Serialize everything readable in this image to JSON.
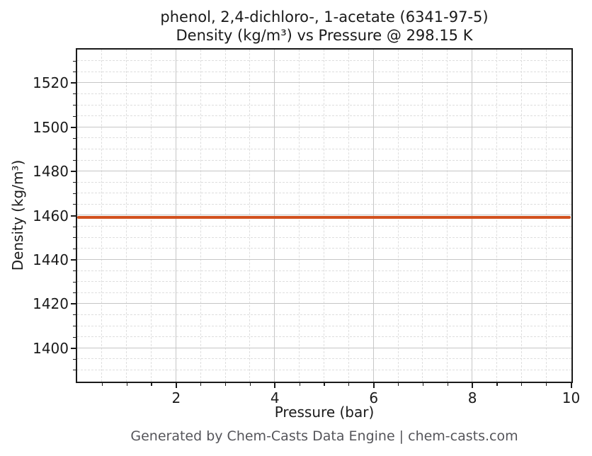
{
  "chart_data": {
    "type": "line",
    "title": "phenol, 2,4-dichloro-, 1-acetate (6341-97-5)",
    "subtitle": "Density (kg/m³) vs Pressure @ 298.15 K",
    "xlabel": "Pressure (bar)",
    "ylabel": "Density (kg/m³)",
    "footer": "Generated by Chem-Casts Data Engine | chem-casts.com",
    "xlim": [
      0,
      10
    ],
    "ylim": [
      1385,
      1535
    ],
    "x_major_ticks": [
      2,
      4,
      6,
      8,
      10
    ],
    "x_minor_step": 0.5,
    "y_major_ticks": [
      1400,
      1420,
      1440,
      1460,
      1480,
      1500,
      1520
    ],
    "y_minor_step": 5,
    "grid": {
      "major_color": "#c6c6c6",
      "minor_color": "#dedede",
      "minor_style": "dashed"
    },
    "legend": null,
    "series": [
      {
        "name": "Density @ 298.15 K",
        "color": "#d1511e",
        "linewidth": 4.5,
        "x": [
          0,
          10
        ],
        "y": [
          1459,
          1459
        ]
      }
    ]
  }
}
